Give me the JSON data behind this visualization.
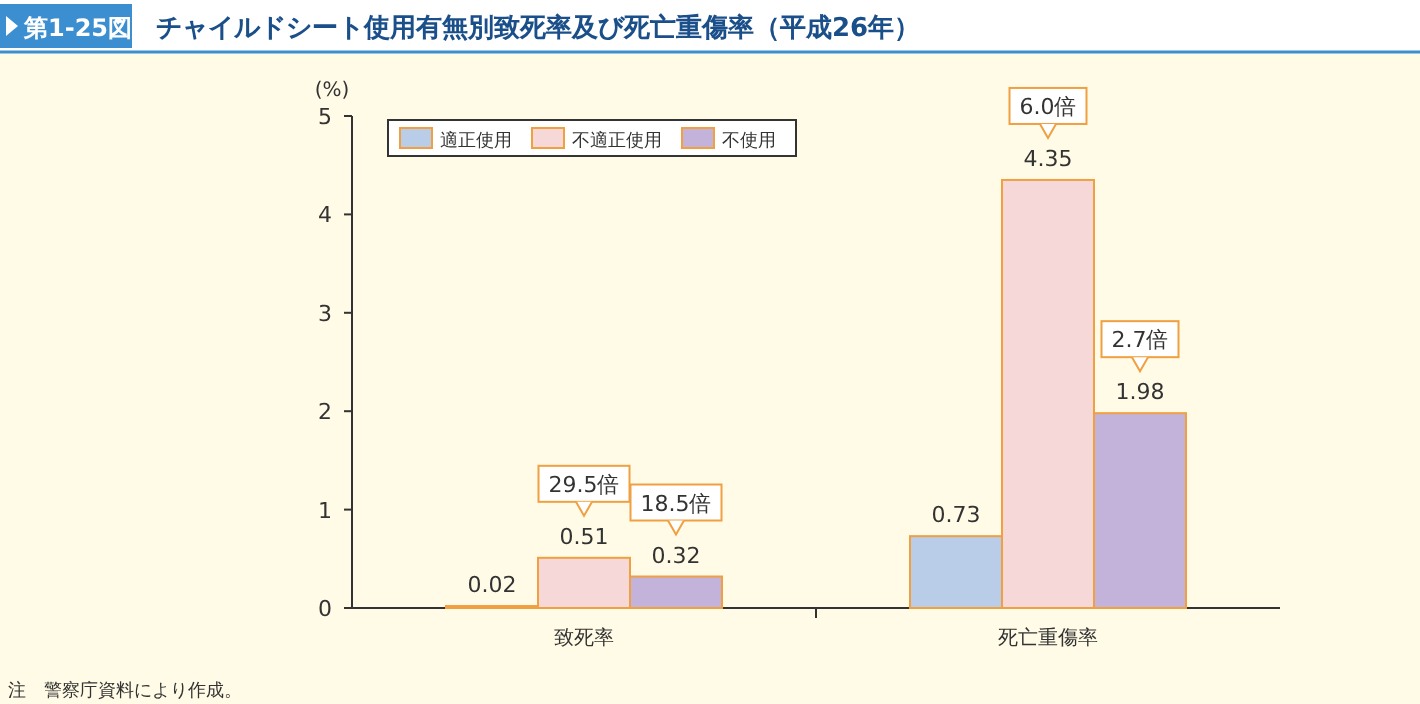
{
  "chart_data": {
    "type": "bar",
    "title": "チャイルドシート使用有無別致死率及び死亡重傷率（平成26年）",
    "subtitle": "第1-25図",
    "ylabel": "(%)",
    "categories": [
      "致死率",
      "死亡重傷率"
    ],
    "series": [
      {
        "name": "適正使用",
        "color": "#b9cde9",
        "values": [
          0.02,
          0.73
        ]
      },
      {
        "name": "不適正使用",
        "color": "#f7d8d8",
        "values": [
          0.51,
          4.35
        ]
      },
      {
        "name": "不使用",
        "color": "#c3b3da",
        "values": [
          0.32,
          1.98
        ]
      }
    ],
    "ylim": [
      0,
      5
    ],
    "yticks": [
      0,
      1,
      2,
      3,
      4,
      5
    ],
    "data_labels": true,
    "legend": "top left",
    "annotations": [
      {
        "text": "29.5倍",
        "x": "致死率",
        "y": 0.51
      },
      "18.5倍",
      {
        "text": "6.0倍",
        "x": "死亡重傷率",
        "y": 4.35
      },
      "2.7倍",
      "注　警察庁資料により作成。"
    ]
  }
}
